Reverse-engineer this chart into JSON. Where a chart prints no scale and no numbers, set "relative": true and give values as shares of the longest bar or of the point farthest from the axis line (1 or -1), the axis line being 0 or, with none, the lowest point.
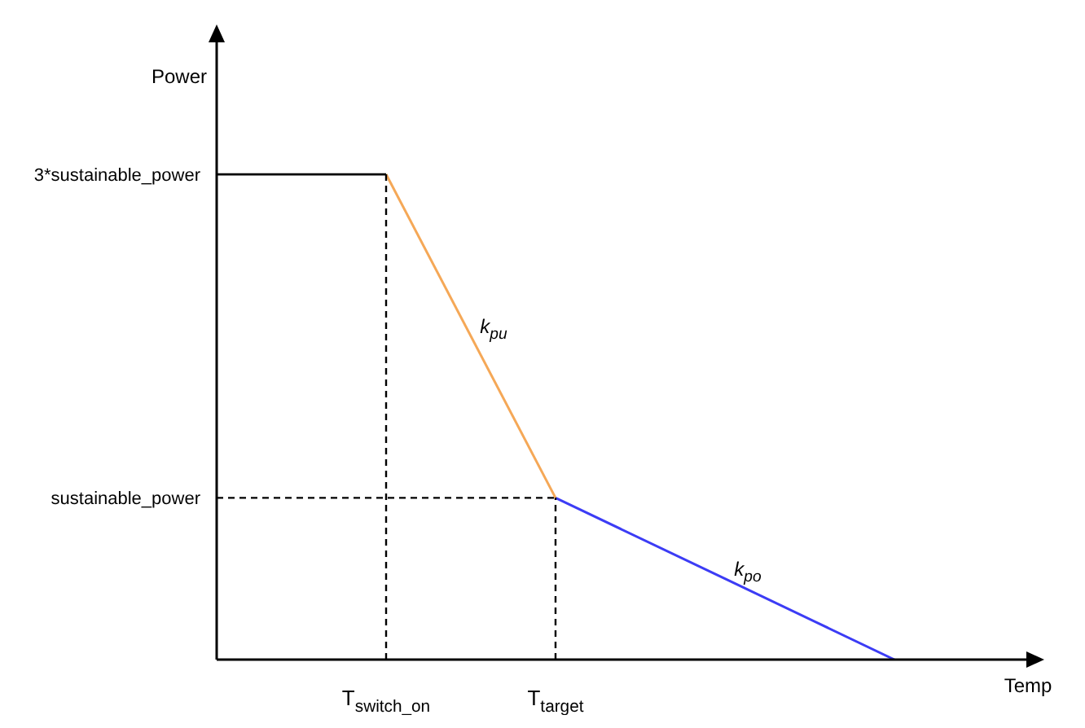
{
  "chart_data": {
    "type": "line",
    "xlabel": "Temp",
    "ylabel": "Power",
    "relative": true,
    "categories": [
      null,
      "T$_{switch_on}$",
      "T$_{target}$",
      null,
      null
    ],
    "series": [
      {
        "name": "3*sustainable_power",
        "color": "#000000",
        "values": [
          1,
          1,
          null,
          null,
          null
        ]
      },
      {
        "color": "#f5a857",
        "values": [
          null,
          1,
          0.3333,
          null,
          null
        ]
      },
      {
        "color": "#3c3cf5",
        "values": [
          null,
          null,
          0.3333,
          0.1667,
          0
        ]
      }
    ],
    "ref_lines": [
      {
        "axis": "y",
        "value": 0.3333,
        "label": "sustainable_power",
        "color": "#000000",
        "line_style": "dashed"
      },
      {
        "axis": "x",
        "value": "T$_{switch_on}$",
        "color": "#000000",
        "line_style": "dashed"
      },
      {
        "axis": "x",
        "value": "T$_{target}$",
        "color": "#000000",
        "line_style": "dashed"
      }
    ],
    "annotations": [
      "k$_{pu}$",
      "k$_{po}$"
    ],
    "marker": "none",
    "line_style": "solid"
  }
}
